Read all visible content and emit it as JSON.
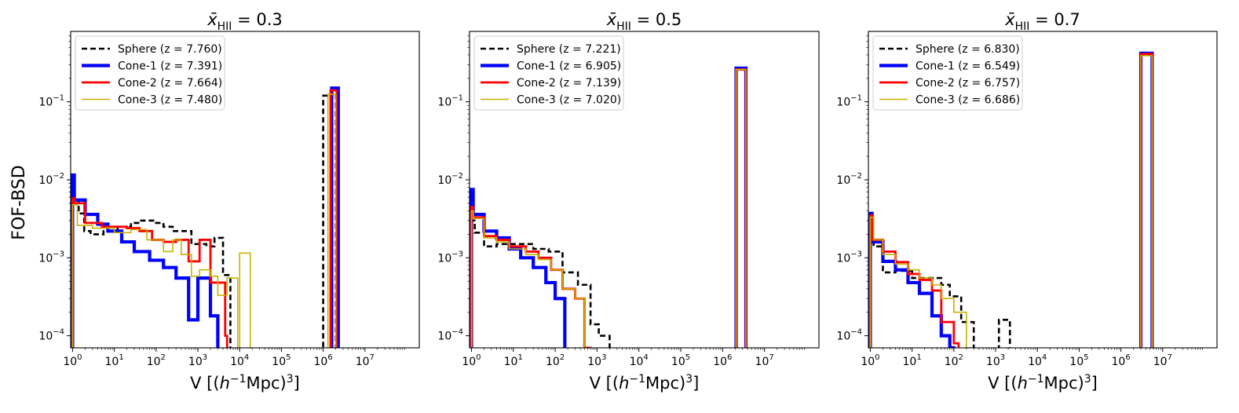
{
  "figure": {
    "ylabel": "FOF-BSD",
    "xlabel_prefix": "V [(",
    "xlabel_h": "h",
    "xlabel_exp1": "−1",
    "xlabel_mid": "Mpc)",
    "xlabel_exp2": "3",
    "xlabel_suffix": "]",
    "title_symbol": "x̄",
    "title_sub": "HII"
  },
  "chart_data": [
    {
      "type": "histogram-step",
      "title": "x̄_HII = 0.3",
      "title_value": "= 0.3",
      "xscale": "log",
      "yscale": "log",
      "xlim": [
        0.9,
        200000000
      ],
      "ylim": [
        7e-05,
        0.8
      ],
      "xticks": [
        {
          "v": 1,
          "label": "10",
          "exp": "0"
        },
        {
          "v": 10,
          "label": "10",
          "exp": "1"
        },
        {
          "v": 100,
          "label": "10",
          "exp": "2"
        },
        {
          "v": 1000,
          "label": "10",
          "exp": "3"
        },
        {
          "v": 10000,
          "label": "10",
          "exp": "4"
        },
        {
          "v": 100000,
          "label": "10",
          "exp": "5"
        },
        {
          "v": 1000000,
          "label": "10",
          "exp": "6"
        },
        {
          "v": 10000000,
          "label": "10",
          "exp": "7"
        }
      ],
      "yticks": [
        {
          "v": 0.0001,
          "label": "10",
          "exp": "−4"
        },
        {
          "v": 0.001,
          "label": "10",
          "exp": "−3"
        },
        {
          "v": 0.01,
          "label": "10",
          "exp": "−2"
        },
        {
          "v": 0.1,
          "label": "10",
          "exp": "−1"
        }
      ],
      "legend_position": "upper-left",
      "series": [
        {
          "name": "Sphere (z = 7.760)",
          "color": "#000000",
          "style": "dashed",
          "width": 2.6,
          "edges": [
            1,
            1.4,
            1.9,
            2.7,
            3.9,
            5.5,
            8,
            12,
            17,
            25,
            40,
            60,
            100,
            150,
            250,
            400,
            700,
            1100,
            1600,
            2500,
            4000,
            6000,
            1000000,
            1500000,
            2000000
          ],
          "values": [
            0.0055,
            0.0037,
            0.0022,
            0.002,
            0.002,
            0.0022,
            0.0022,
            0.0025,
            0.0025,
            0.0028,
            0.003,
            0.003,
            0.0028,
            0.0025,
            0.0022,
            0.0022,
            0.0015,
            0.0015,
            0.0014,
            0.0018,
            0.0006,
            1e-05,
            0.12,
            0.13
          ]
        },
        {
          "name": "Cone-1 (z = 7.391)",
          "color": "#0000ff",
          "style": "solid",
          "width": 4.2,
          "edges": [
            1,
            1.1,
            2,
            4,
            7,
            15,
            30,
            70,
            150,
            300,
            600,
            1000,
            2000,
            3000,
            1600000,
            2300000
          ],
          "values": [
            0.0115,
            0.0055,
            0.0036,
            0.0027,
            0.0022,
            0.0016,
            0.0012,
            0.00093,
            0.00075,
            0.00055,
            0.00016,
            0.00055,
            0.00018,
            1e-05,
            0.15
          ]
        },
        {
          "name": "Cone-2 (z = 7.664)",
          "color": "#ff0000",
          "style": "solid",
          "width": 2.8,
          "edges": [
            1,
            1.1,
            2,
            5,
            20,
            40,
            80,
            150,
            300,
            600,
            1100,
            2000,
            4500,
            5000,
            1500000,
            2100000
          ],
          "values": [
            0.0058,
            0.005,
            0.0028,
            0.0025,
            0.0024,
            0.0022,
            0.0017,
            0.0016,
            0.0017,
            0.0009,
            0.0017,
            0.00048,
            0.0001,
            1e-05,
            0.14
          ]
        },
        {
          "name": "Cone-3 (z = 7.480)",
          "color": "#c8b400",
          "style": "solid",
          "width": 1.6,
          "edges": [
            1,
            1.3,
            3,
            10,
            25,
            60,
            150,
            250,
            400,
            700,
            1100,
            2000,
            3000,
            5000,
            9000,
            10000,
            18000,
            1300000,
            2000000
          ],
          "values": [
            0.0048,
            0.0026,
            0.0024,
            0.0021,
            0.0023,
            0.0017,
            0.0012,
            0.0017,
            0.0011,
            0.00058,
            0.0007,
            0.00058,
            0.00033,
            0.00055,
            1e-05,
            0.00115,
            1e-05,
            0.125
          ]
        }
      ]
    },
    {
      "type": "histogram-step",
      "title": "x̄_HII = 0.5",
      "title_value": "= 0.5",
      "xscale": "log",
      "yscale": "log",
      "xlim": [
        0.9,
        200000000
      ],
      "ylim": [
        7e-05,
        0.8
      ],
      "xticks": [
        {
          "v": 1,
          "label": "10",
          "exp": "0"
        },
        {
          "v": 10,
          "label": "10",
          "exp": "1"
        },
        {
          "v": 100,
          "label": "10",
          "exp": "2"
        },
        {
          "v": 1000,
          "label": "10",
          "exp": "3"
        },
        {
          "v": 10000,
          "label": "10",
          "exp": "4"
        },
        {
          "v": 100000,
          "label": "10",
          "exp": "5"
        },
        {
          "v": 1000000,
          "label": "10",
          "exp": "6"
        },
        {
          "v": 10000000,
          "label": "10",
          "exp": "7"
        }
      ],
      "yticks": [
        {
          "v": 0.0001,
          "label": "10",
          "exp": "−4"
        },
        {
          "v": 0.001,
          "label": "10",
          "exp": "−3"
        },
        {
          "v": 0.01,
          "label": "10",
          "exp": "−2"
        },
        {
          "v": 0.1,
          "label": "10",
          "exp": "−1"
        }
      ],
      "legend_position": "upper-left",
      "series": [
        {
          "name": "Sphere (z = 7.221)",
          "color": "#000000",
          "style": "dashed",
          "width": 2.6,
          "edges": [
            1,
            1.2,
            2,
            4,
            10,
            30,
            70,
            150,
            350,
            700,
            1100,
            2000,
            2100000,
            3600000
          ],
          "values": [
            0.003,
            0.0021,
            0.0014,
            0.0015,
            0.0015,
            0.0013,
            0.0012,
            0.00065,
            0.00045,
            0.00014,
            0.0001,
            1e-05,
            0.26
          ]
        },
        {
          "name": "Cone-1 (z = 6.905)",
          "color": "#0000ff",
          "style": "solid",
          "width": 4.2,
          "edges": [
            1,
            1.1,
            2,
            4,
            8,
            15,
            30,
            60,
            100,
            170,
            2100000,
            3600000
          ],
          "values": [
            0.0075,
            0.0036,
            0.0022,
            0.0018,
            0.0013,
            0.001,
            0.00075,
            0.00048,
            0.0003,
            1e-05,
            0.27
          ]
        },
        {
          "name": "Cone-2 (z = 7.139)",
          "color": "#ff0000",
          "style": "solid",
          "width": 2.8,
          "edges": [
            1,
            1.1,
            2,
            4,
            8,
            20,
            40,
            80,
            150,
            300,
            500,
            700,
            2100000,
            3600000
          ],
          "values": [
            0.0045,
            0.0033,
            0.0019,
            0.0017,
            0.0014,
            0.0012,
            0.001,
            0.0007,
            0.0004,
            0.0003,
            7e-05,
            1e-05,
            0.26
          ]
        },
        {
          "name": "Cone-3 (z = 7.020)",
          "color": "#c8b400",
          "style": "solid",
          "width": 1.6,
          "edges": [
            1,
            1.1,
            2,
            4,
            8,
            20,
            40,
            80,
            150,
            300,
            500,
            2100000,
            3600000
          ],
          "values": [
            0.004,
            0.0032,
            0.0018,
            0.0016,
            0.0013,
            0.0011,
            0.00095,
            0.0007,
            0.0004,
            0.0003,
            1e-05,
            0.26
          ]
        }
      ]
    },
    {
      "type": "histogram-step",
      "title": "x̄_HII = 0.7",
      "title_value": "= 0.7",
      "xscale": "log",
      "yscale": "log",
      "xlim": [
        0.9,
        200000000
      ],
      "ylim": [
        7e-05,
        0.8
      ],
      "xticks": [
        {
          "v": 1,
          "label": "10",
          "exp": "0"
        },
        {
          "v": 10,
          "label": "10",
          "exp": "1"
        },
        {
          "v": 100,
          "label": "10",
          "exp": "2"
        },
        {
          "v": 1000,
          "label": "10",
          "exp": "3"
        },
        {
          "v": 10000,
          "label": "10",
          "exp": "4"
        },
        {
          "v": 100000,
          "label": "10",
          "exp": "5"
        },
        {
          "v": 1000000,
          "label": "10",
          "exp": "6"
        },
        {
          "v": 10000000,
          "label": "10",
          "exp": "7"
        }
      ],
      "yticks": [
        {
          "v": 0.0001,
          "label": "10",
          "exp": "−4"
        },
        {
          "v": 0.001,
          "label": "10",
          "exp": "−3"
        },
        {
          "v": 0.01,
          "label": "10",
          "exp": "−2"
        },
        {
          "v": 0.1,
          "label": "10",
          "exp": "−1"
        }
      ],
      "legend_position": "upper-left",
      "series": [
        {
          "name": "Sphere (z = 6.830)",
          "color": "#000000",
          "style": "dashed",
          "width": 2.6,
          "edges": [
            1,
            1.2,
            2,
            4,
            10,
            25,
            50,
            80,
            150,
            300,
            1200,
            2200,
            3000000,
            5600000
          ],
          "values": [
            0.0016,
            0.0014,
            0.00065,
            0.00068,
            0.00055,
            0.00055,
            0.00045,
            0.00032,
            0.00015,
            1e-05,
            0.00016,
            1e-05,
            0.4
          ]
        },
        {
          "name": "Cone-1 (z = 6.549)",
          "color": "#0000ff",
          "style": "solid",
          "width": 4.2,
          "edges": [
            1,
            1.1,
            2,
            4,
            8,
            15,
            30,
            50,
            80,
            100,
            3000000,
            5600000
          ],
          "values": [
            0.0037,
            0.0016,
            0.0009,
            0.0007,
            0.00048,
            0.00035,
            0.00018,
            0.0001,
            7e-05,
            1e-05,
            0.42
          ]
        },
        {
          "name": "Cone-2 (z = 6.757)",
          "color": "#ff0000",
          "style": "solid",
          "width": 2.8,
          "edges": [
            1,
            1.1,
            2,
            4,
            8,
            15,
            30,
            50,
            100,
            130,
            3000000,
            5600000
          ],
          "values": [
            0.0035,
            0.0017,
            0.0012,
            0.00088,
            0.00062,
            0.00052,
            0.00038,
            0.00015,
            8e-05,
            1e-05,
            0.41
          ]
        },
        {
          "name": "Cone-3 (z = 6.686)",
          "color": "#c8b400",
          "style": "solid",
          "width": 1.6,
          "edges": [
            1,
            1.2,
            2,
            4,
            8,
            15,
            30,
            50,
            100,
            200,
            250,
            3000000,
            5600000
          ],
          "values": [
            0.0033,
            0.0017,
            0.0011,
            0.00083,
            0.0007,
            0.00055,
            0.00045,
            0.0003,
            0.0002,
            7e-05,
            1e-05,
            0.39
          ]
        }
      ]
    }
  ]
}
